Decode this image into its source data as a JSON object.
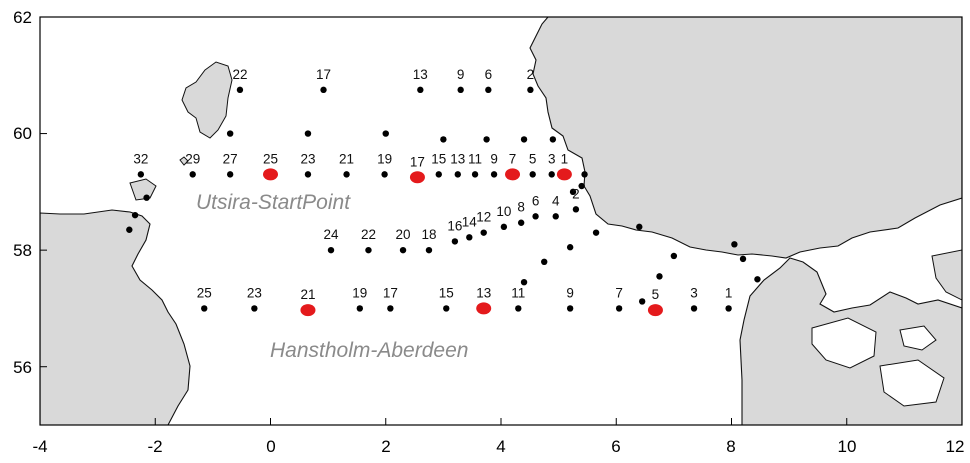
{
  "map": {
    "x_ticks": [
      "-4",
      "-2",
      "0",
      "2",
      "4",
      "6",
      "8",
      "10",
      "12"
    ],
    "y_ticks": [
      "56",
      "58",
      "60",
      "62"
    ],
    "xlim": [
      -4,
      12
    ],
    "ylim": [
      55,
      62
    ],
    "colors": {
      "land": "#d9d9d9",
      "sea": "#ffffff",
      "coast": "#111111",
      "station": "#000000",
      "highlight": "#e41a1c",
      "transect_label": "#8a8a8a"
    },
    "transect_labels": {
      "utsira": "Utsira-StartPoint",
      "hanstholm": "Hanstholm-Aberdeen"
    },
    "stations": [
      {
        "lon": 4.51,
        "lat": 60.75,
        "label": "2"
      },
      {
        "lon": 3.78,
        "lat": 60.75,
        "label": "6"
      },
      {
        "lon": 3.3,
        "lat": 60.75,
        "label": "9"
      },
      {
        "lon": 2.6,
        "lat": 60.75,
        "label": "13"
      },
      {
        "lon": 0.92,
        "lat": 60.75,
        "label": "17"
      },
      {
        "lon": -0.53,
        "lat": 60.75,
        "label": "22"
      },
      {
        "lon": -0.7,
        "lat": 60.0
      },
      {
        "lon": 0.65,
        "lat": 60.0
      },
      {
        "lon": 2.0,
        "lat": 60.0
      },
      {
        "lon": 3.0,
        "lat": 59.9
      },
      {
        "lon": 3.75,
        "lat": 59.9
      },
      {
        "lon": 4.4,
        "lat": 59.9
      },
      {
        "lon": 4.9,
        "lat": 59.9
      },
      {
        "lon": -2.25,
        "lat": 59.3,
        "label": "32"
      },
      {
        "lon": -1.35,
        "lat": 59.3,
        "label": "29"
      },
      {
        "lon": -0.7,
        "lat": 59.3,
        "label": "27"
      },
      {
        "lon": 0.0,
        "lat": 59.3,
        "label": "25",
        "highlight": true
      },
      {
        "lon": 0.65,
        "lat": 59.3,
        "label": "23"
      },
      {
        "lon": 1.32,
        "lat": 59.3,
        "label": "21"
      },
      {
        "lon": 1.98,
        "lat": 59.3,
        "label": "19"
      },
      {
        "lon": 2.55,
        "lat": 59.25,
        "label": "17",
        "highlight": true
      },
      {
        "lon": 2.92,
        "lat": 59.3,
        "label": "15"
      },
      {
        "lon": 3.25,
        "lat": 59.3,
        "label": "13"
      },
      {
        "lon": 3.55,
        "lat": 59.3,
        "label": "11"
      },
      {
        "lon": 3.88,
        "lat": 59.3,
        "label": "9"
      },
      {
        "lon": 4.2,
        "lat": 59.3,
        "label": "7",
        "highlight": true
      },
      {
        "lon": 4.55,
        "lat": 59.3,
        "label": "5"
      },
      {
        "lon": 4.88,
        "lat": 59.3,
        "label": "3"
      },
      {
        "lon": 5.1,
        "lat": 59.3,
        "label": "1",
        "highlight": true
      },
      {
        "lon": 5.45,
        "lat": 59.3
      },
      {
        "lon": 5.4,
        "lat": 59.1
      },
      {
        "lon": 5.25,
        "lat": 59.0
      },
      {
        "lon": -2.15,
        "lat": 58.9
      },
      {
        "lon": -2.35,
        "lat": 58.6
      },
      {
        "lon": -2.45,
        "lat": 58.35
      },
      {
        "lon": 5.3,
        "lat": 58.7,
        "label": "2"
      },
      {
        "lon": 4.95,
        "lat": 58.58,
        "label": "4"
      },
      {
        "lon": 4.6,
        "lat": 58.58,
        "label": "6"
      },
      {
        "lon": 4.35,
        "lat": 58.47,
        "label": "8"
      },
      {
        "lon": 4.05,
        "lat": 58.4,
        "label": "10"
      },
      {
        "lon": 3.7,
        "lat": 58.3,
        "label": "12"
      },
      {
        "lon": 3.45,
        "lat": 58.22,
        "label": "14"
      },
      {
        "lon": 3.2,
        "lat": 58.15,
        "label": "16"
      },
      {
        "lon": 2.75,
        "lat": 58.0,
        "label": "18"
      },
      {
        "lon": 2.3,
        "lat": 58.0,
        "label": "20"
      },
      {
        "lon": 1.7,
        "lat": 58.0,
        "label": "22"
      },
      {
        "lon": 1.05,
        "lat": 58.0,
        "label": "24"
      },
      {
        "lon": 5.2,
        "lat": 58.05
      },
      {
        "lon": 4.75,
        "lat": 57.8
      },
      {
        "lon": 4.4,
        "lat": 57.45
      },
      {
        "lon": 5.65,
        "lat": 58.3
      },
      {
        "lon": 6.4,
        "lat": 58.4
      },
      {
        "lon": 7.0,
        "lat": 57.9
      },
      {
        "lon": 6.75,
        "lat": 57.55
      },
      {
        "lon": 8.05,
        "lat": 58.1
      },
      {
        "lon": 8.2,
        "lat": 57.85
      },
      {
        "lon": 8.45,
        "lat": 57.5
      },
      {
        "lon": 6.45,
        "lat": 57.12
      },
      {
        "lon": -1.15,
        "lat": 57.0,
        "label": "25"
      },
      {
        "lon": -0.28,
        "lat": 57.0,
        "label": "23"
      },
      {
        "lon": 0.65,
        "lat": 56.97,
        "label": "21",
        "highlight": true
      },
      {
        "lon": 1.55,
        "lat": 57.0,
        "label": "19"
      },
      {
        "lon": 2.08,
        "lat": 57.0,
        "label": "17"
      },
      {
        "lon": 3.05,
        "lat": 57.0,
        "label": "15"
      },
      {
        "lon": 3.7,
        "lat": 57.0,
        "label": "13",
        "highlight": true
      },
      {
        "lon": 4.3,
        "lat": 57.0,
        "label": "11"
      },
      {
        "lon": 5.2,
        "lat": 57.0,
        "label": "9"
      },
      {
        "lon": 6.05,
        "lat": 57.0,
        "label": "7"
      },
      {
        "lon": 6.68,
        "lat": 56.97,
        "label": "5",
        "highlight": true
      },
      {
        "lon": 7.35,
        "lat": 57.0,
        "label": "3"
      },
      {
        "lon": 7.95,
        "lat": 57.0,
        "label": "1"
      }
    ]
  }
}
